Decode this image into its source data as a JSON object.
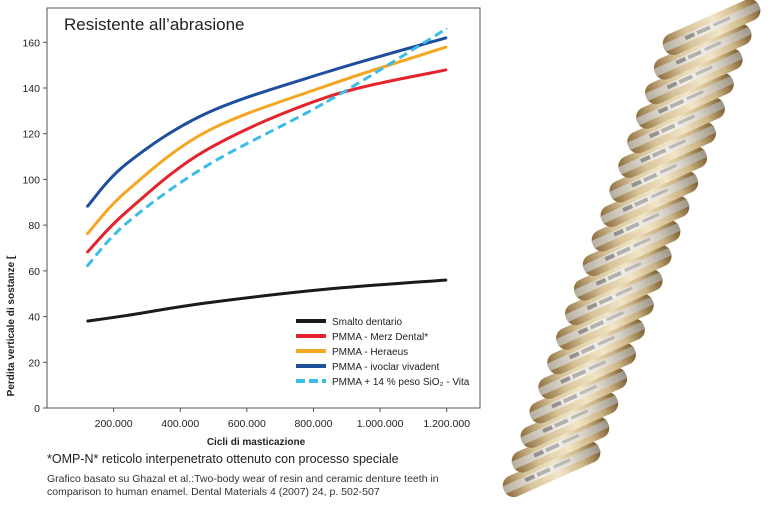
{
  "chart_data": {
    "type": "line",
    "title": "Resistente all’abrasione",
    "xlabel": "Cicli di masticazione",
    "ylabel": "Perdita verticale di sostanze [",
    "xlim": [
      0,
      1300000
    ],
    "ylim": [
      0,
      175
    ],
    "x_ticks": [
      200000,
      400000,
      600000,
      800000,
      1000000,
      1200000
    ],
    "x_tick_labels": [
      "200.000",
      "400.000",
      "600.000",
      "800.000",
      "1.000.000",
      "1.200.000"
    ],
    "y_ticks": [
      0,
      20,
      40,
      60,
      80,
      100,
      120,
      140,
      160
    ],
    "y_tick_labels": [
      "0",
      "20",
      "40",
      "60",
      "80",
      "100",
      "120",
      "140",
      "160"
    ],
    "legend_position": "bottom-right",
    "series": [
      {
        "name": "Smalto dentario",
        "color": "#1a1a1a",
        "style": "solid",
        "x": [
          120000,
          240000,
          480000,
          840000,
          1200000
        ],
        "values": [
          38,
          40.5,
          46,
          52,
          56
        ]
      },
      {
        "name": "PMMA - Merz Dental*",
        "color": "#e5232d",
        "style": "solid",
        "x": [
          120000,
          240000,
          480000,
          840000,
          1200000
        ],
        "values": [
          68,
          86,
          113,
          136,
          148
        ]
      },
      {
        "name": "PMMA - Heraeus",
        "color": "#f5a623",
        "style": "solid",
        "x": [
          120000,
          240000,
          480000,
          840000,
          1200000
        ],
        "values": [
          76,
          95,
          121,
          141,
          158
        ]
      },
      {
        "name": "PMMA - ivoclar vivadent",
        "color": "#1f4e9c",
        "style": "solid",
        "x": [
          120000,
          240000,
          480000,
          840000,
          1200000
        ],
        "values": [
          88,
          107,
          129,
          147,
          162
        ]
      },
      {
        "name": "PMMA + 14 % peso SiO₂ - Vita",
        "color": "#3cbde6",
        "style": "dashed",
        "x": [
          120000,
          240000,
          480000,
          840000,
          1200000
        ],
        "values": [
          62,
          81,
          106,
          134,
          166
        ]
      }
    ]
  },
  "footnote": "*OMP-N* reticolo interpenetrato ottenuto con processo speciale",
  "source": "Grafico basato su Ghazal et al.:Two-body wear of resin and ceramic denture teeth in comparison to human enamel. Dental Materials 4 (2007) 24, p. 502-507"
}
